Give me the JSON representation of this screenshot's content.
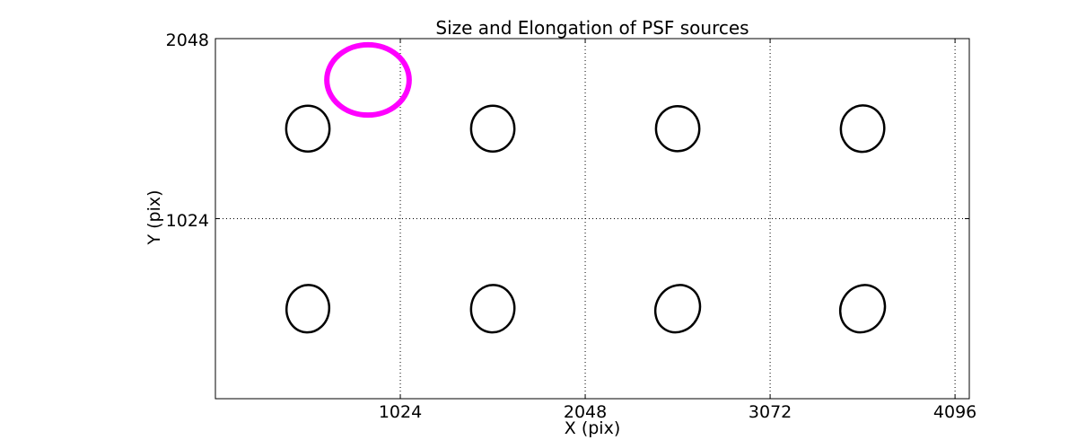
{
  "chart_data": {
    "type": "scatter",
    "title": "Size and Elongation of PSF sources",
    "xlabel": "X (pix)",
    "ylabel": "Y (pix)",
    "xlim": [
      0,
      4175
    ],
    "ylim": [
      0,
      2048
    ],
    "xticks": [
      1024,
      2048,
      3072,
      4096
    ],
    "yticks": [
      1024,
      2048
    ],
    "grid": "dotted",
    "legend": "none",
    "frame_color": "#000000",
    "grid_color": "#000000",
    "source_color": "#000000",
    "highlight_color": "#ff00ff",
    "sources": [
      {
        "x": 512,
        "y": 1536,
        "a": 120,
        "b": 130,
        "angle": 0,
        "color": "#000000",
        "stroke": 2.5,
        "role": "psf-source"
      },
      {
        "x": 1536,
        "y": 1536,
        "a": 120,
        "b": 130,
        "angle": 0,
        "color": "#000000",
        "stroke": 2.5,
        "role": "psf-source"
      },
      {
        "x": 2560,
        "y": 1536,
        "a": 120,
        "b": 128,
        "angle": 0,
        "color": "#000000",
        "stroke": 2.5,
        "role": "psf-source"
      },
      {
        "x": 3584,
        "y": 1536,
        "a": 120,
        "b": 132,
        "angle": 8,
        "color": "#000000",
        "stroke": 2.5,
        "role": "psf-source"
      },
      {
        "x": 512,
        "y": 512,
        "a": 118,
        "b": 135,
        "angle": 6,
        "color": "#000000",
        "stroke": 2.5,
        "role": "psf-source"
      },
      {
        "x": 1536,
        "y": 512,
        "a": 120,
        "b": 135,
        "angle": 6,
        "color": "#000000",
        "stroke": 2.5,
        "role": "psf-source"
      },
      {
        "x": 2560,
        "y": 512,
        "a": 120,
        "b": 138,
        "angle": 30,
        "color": "#000000",
        "stroke": 2.5,
        "role": "psf-source"
      },
      {
        "x": 3584,
        "y": 512,
        "a": 120,
        "b": 138,
        "angle": 30,
        "color": "#000000",
        "stroke": 2.5,
        "role": "psf-source"
      },
      {
        "x": 845,
        "y": 1813,
        "a": 228,
        "b": 200,
        "angle": 0,
        "color": "#ff00ff",
        "stroke": 6,
        "role": "highlighted-source"
      }
    ]
  }
}
